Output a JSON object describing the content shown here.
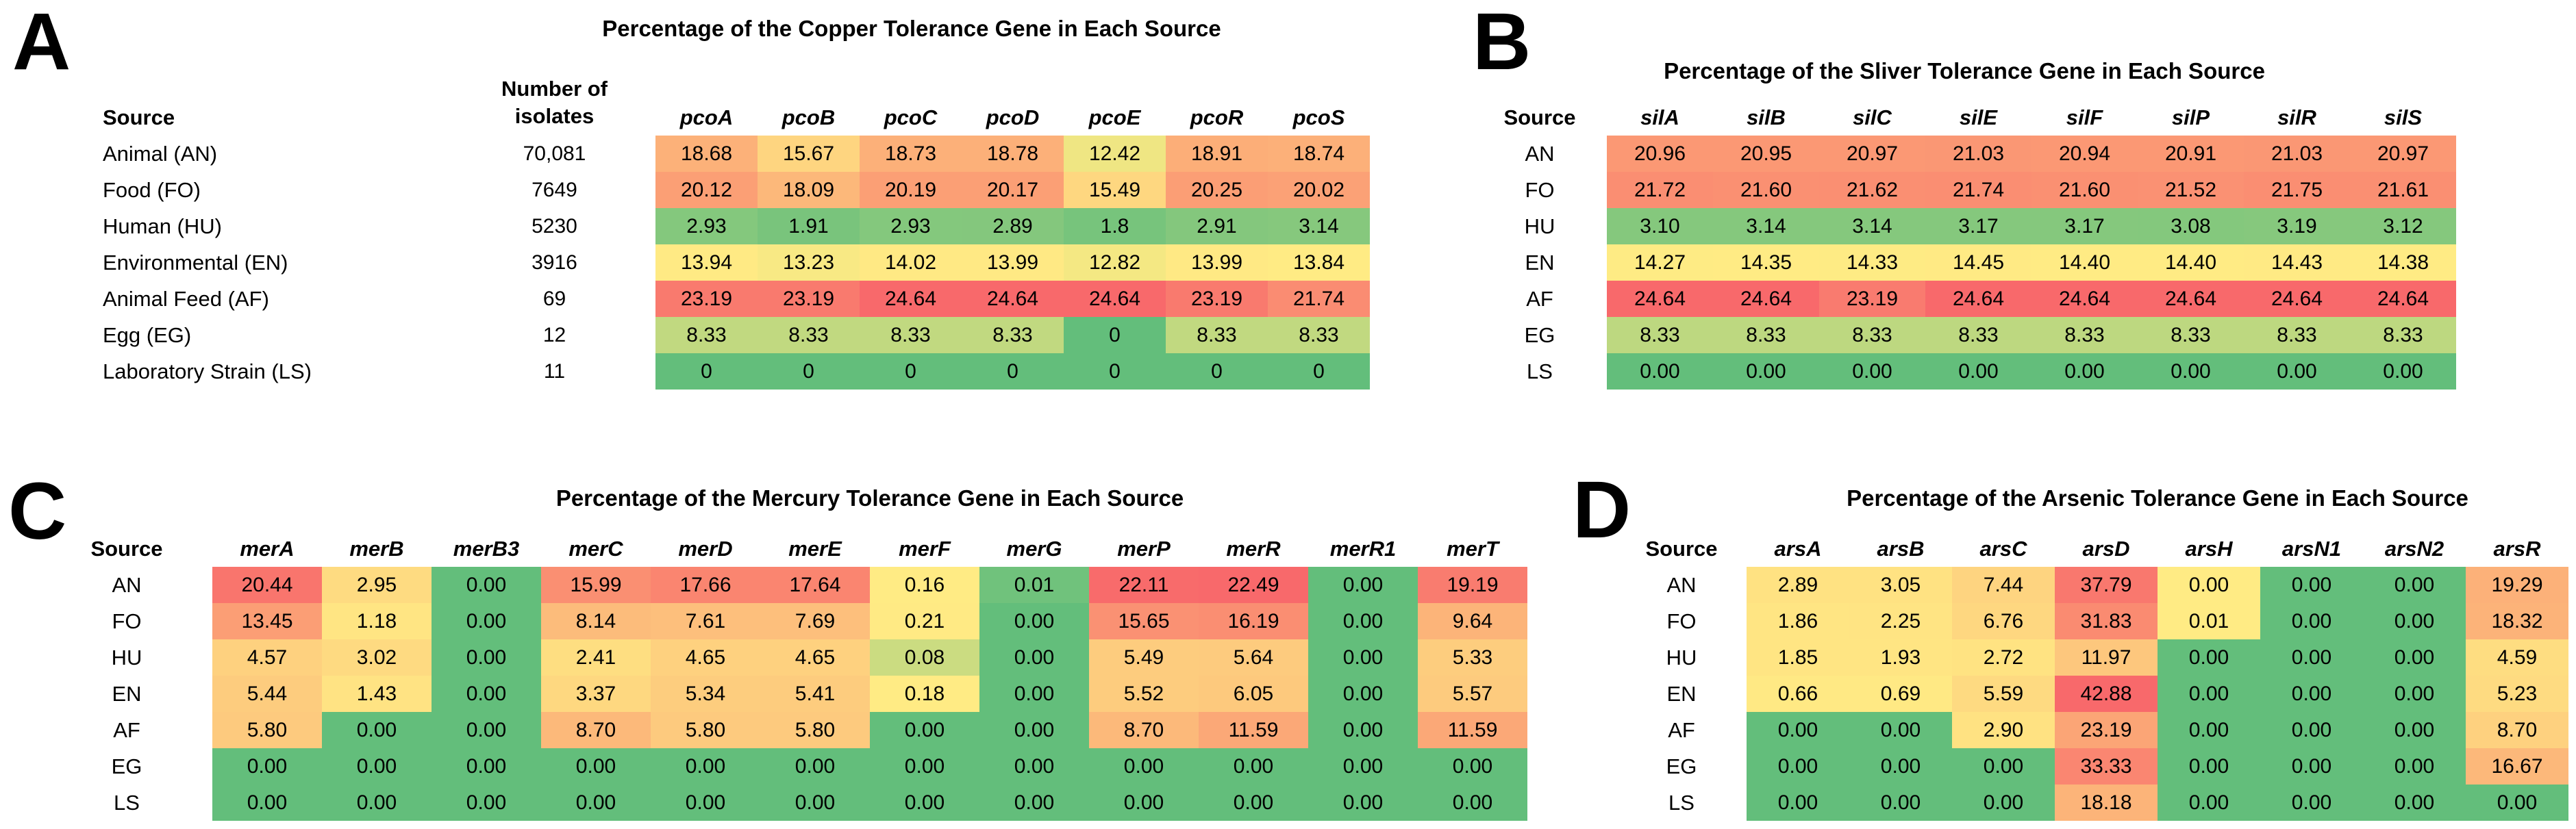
{
  "color_scale": {
    "low": "#63BE7B",
    "mid": "#FFEB84",
    "high": "#F8696B",
    "midpoint_rule": "50th percentile"
  },
  "chart_data": [
    {
      "type": "heatmap",
      "panel": "A",
      "letter": "A",
      "title": "Percentage of the Copper Tolerance Gene in Each Source",
      "source_header": "Source",
      "isolates_header_line1": "Number of",
      "isolates_header_line2": "isolates",
      "columns": [
        "pcoA",
        "pcoB",
        "pcoC",
        "pcoD",
        "pcoE",
        "pcoR",
        "pcoS"
      ],
      "rows": [
        "Animal (AN)",
        "Food (FO)",
        "Human (HU)",
        "Environmental (EN)",
        "Animal Feed (AF)",
        "Egg (EG)",
        "Laboratory Strain (LS)"
      ],
      "isolates": [
        "70,081",
        "7649",
        "5230",
        "3916",
        "69",
        "12",
        "11"
      ],
      "values": [
        [
          "18.68",
          "15.67",
          "18.73",
          "18.78",
          "12.42",
          "18.91",
          "18.74"
        ],
        [
          "20.12",
          "18.09",
          "20.19",
          "20.17",
          "15.49",
          "20.25",
          "20.02"
        ],
        [
          "2.93",
          "1.91",
          "2.93",
          "2.89",
          "1.8",
          "2.91",
          "3.14"
        ],
        [
          "13.94",
          "13.23",
          "14.02",
          "13.99",
          "12.82",
          "13.99",
          "13.84"
        ],
        [
          "23.19",
          "23.19",
          "24.64",
          "24.64",
          "24.64",
          "23.19",
          "21.74"
        ],
        [
          "8.33",
          "8.33",
          "8.33",
          "8.33",
          "0",
          "8.33",
          "8.33"
        ],
        [
          "0",
          "0",
          "0",
          "0",
          "0",
          "0",
          "0"
        ]
      ],
      "color_overrides": []
    },
    {
      "type": "heatmap",
      "panel": "B",
      "letter": "B",
      "title": "Percentage of the Sliver Tolerance Gene in Each Source",
      "source_header": "Source",
      "columns": [
        "silA",
        "silB",
        "silC",
        "silE",
        "silF",
        "silP",
        "silR",
        "silS"
      ],
      "rows": [
        "AN",
        "FO",
        "HU",
        "EN",
        "AF",
        "EG",
        "LS"
      ],
      "values": [
        [
          "20.96",
          "20.95",
          "20.97",
          "21.03",
          "20.94",
          "20.91",
          "21.03",
          "20.97"
        ],
        [
          "21.72",
          "21.60",
          "21.62",
          "21.74",
          "21.60",
          "21.52",
          "21.75",
          "21.61"
        ],
        [
          "3.10",
          "3.14",
          "3.14",
          "3.17",
          "3.17",
          "3.08",
          "3.19",
          "3.12"
        ],
        [
          "14.27",
          "14.35",
          "14.33",
          "14.45",
          "14.40",
          "14.40",
          "14.43",
          "14.38"
        ],
        [
          "24.64",
          "24.64",
          "23.19",
          "24.64",
          "24.64",
          "24.64",
          "24.64",
          "24.64"
        ],
        [
          "8.33",
          "8.33",
          "8.33",
          "8.33",
          "8.33",
          "8.33",
          "8.33",
          "8.33"
        ],
        [
          "0.00",
          "0.00",
          "0.00",
          "0.00",
          "0.00",
          "0.00",
          "0.00",
          "0.00"
        ]
      ],
      "color_overrides": []
    },
    {
      "type": "heatmap",
      "panel": "C",
      "letter": "C",
      "title": "Percentage of the Mercury Tolerance Gene in Each Source",
      "source_header": "Source",
      "columns": [
        "merA",
        "merB",
        "merB3",
        "merC",
        "merD",
        "merE",
        "merF",
        "merG",
        "merP",
        "merR",
        "merR1",
        "merT"
      ],
      "rows": [
        "AN",
        "FO",
        "HU",
        "EN",
        "AF",
        "EG",
        "LS"
      ],
      "values": [
        [
          "20.44",
          "2.95",
          "0.00",
          "15.99",
          "17.66",
          "17.64",
          "0.16",
          "0.01",
          "22.11",
          "22.49",
          "0.00",
          "19.19"
        ],
        [
          "13.45",
          "1.18",
          "0.00",
          "8.14",
          "7.61",
          "7.69",
          "0.21",
          "0.00",
          "15.65",
          "16.19",
          "0.00",
          "9.64"
        ],
        [
          "4.57",
          "3.02",
          "0.00",
          "2.41",
          "4.65",
          "4.65",
          "0.08",
          "0.00",
          "5.49",
          "5.64",
          "0.00",
          "5.33"
        ],
        [
          "5.44",
          "1.43",
          "0.00",
          "3.37",
          "5.34",
          "5.41",
          "0.18",
          "0.00",
          "5.52",
          "6.05",
          "0.00",
          "5.57"
        ],
        [
          "5.80",
          "0.00",
          "0.00",
          "8.70",
          "5.80",
          "5.80",
          "0.00",
          "0.00",
          "8.70",
          "11.59",
          "0.00",
          "11.59"
        ],
        [
          "0.00",
          "0.00",
          "0.00",
          "0.00",
          "0.00",
          "0.00",
          "0.00",
          "0.00",
          "0.00",
          "0.00",
          "0.00",
          "0.00"
        ],
        [
          "0.00",
          "0.00",
          "0.00",
          "0.00",
          "0.00",
          "0.00",
          "0.00",
          "0.00",
          "0.00",
          "0.00",
          "0.00",
          "0.00"
        ]
      ],
      "color_overrides": []
    },
    {
      "type": "heatmap",
      "panel": "D",
      "letter": "D",
      "title": "Percentage of the Arsenic Tolerance Gene in Each Source",
      "source_header": "Source",
      "columns": [
        "arsA",
        "arsB",
        "arsC",
        "arsD",
        "arsH",
        "arsN1",
        "arsN2",
        "arsR"
      ],
      "rows": [
        "AN",
        "FO",
        "HU",
        "EN",
        "AF",
        "EG",
        "LS"
      ],
      "values": [
        [
          "2.89",
          "3.05",
          "7.44",
          "37.79",
          "0.00",
          "0.00",
          "0.00",
          "19.29"
        ],
        [
          "1.86",
          "2.25",
          "6.76",
          "31.83",
          "0.01",
          "0.00",
          "0.00",
          "18.32"
        ],
        [
          "1.85",
          "1.93",
          "2.72",
          "11.97",
          "0.00",
          "0.00",
          "0.00",
          "4.59"
        ],
        [
          "0.66",
          "0.69",
          "5.59",
          "42.88",
          "0.00",
          "0.00",
          "0.00",
          "5.23"
        ],
        [
          "0.00",
          "0.00",
          "2.90",
          "23.19",
          "0.00",
          "0.00",
          "0.00",
          "8.70"
        ],
        [
          "0.00",
          "0.00",
          "0.00",
          "33.33",
          "0.00",
          "0.00",
          "0.00",
          "16.67"
        ],
        [
          "0.00",
          "0.00",
          "0.00",
          "18.18",
          "0.00",
          "0.00",
          "0.00",
          "0.00"
        ]
      ],
      "color_overrides": [
        {
          "row": 0,
          "col": 4,
          "color": "#FFEB84"
        }
      ]
    }
  ]
}
